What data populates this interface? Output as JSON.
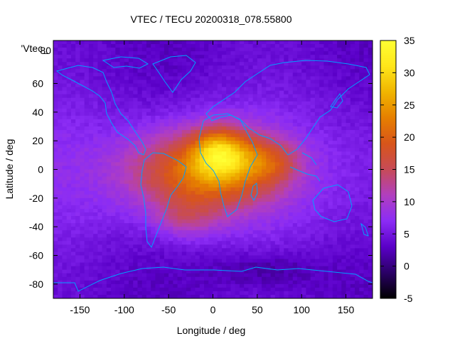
{
  "chart_data": {
    "type": "heatmap",
    "title": "VTEC / TECU 20200318_078.55800",
    "xlabel": "Longitude / deg",
    "ylabel": "Latitude / deg",
    "xlim": [
      -180,
      180
    ],
    "ylim": [
      -90,
      90
    ],
    "x_ticks": [
      "-150",
      "-100",
      "-50",
      "0",
      "50",
      "100",
      "150"
    ],
    "y_ticks": [
      "60",
      "40",
      "20",
      "0",
      "-20",
      "-40",
      "-60",
      "-80"
    ],
    "y_tick_top": "'Vtec_",
    "y_tick_top_hidden": "80",
    "colorbar": {
      "range": [
        -5,
        35
      ],
      "ticks": [
        "35",
        "30",
        "25",
        "20",
        "15",
        "10",
        "5",
        "0",
        "-5"
      ],
      "palette": [
        "#000000",
        "#2a0066",
        "#5a00c8",
        "#8b2cf5",
        "#b13fbf",
        "#c74b57",
        "#d8551a",
        "#e67f00",
        "#f0b500",
        "#ffe61a",
        "#ffff33"
      ]
    },
    "field": {
      "background_tecu": 5,
      "peak": {
        "lon": 5,
        "lat": 12,
        "tecu": 30
      },
      "anomaly_region_lon": [
        -110,
        80
      ],
      "anomaly_region_lat": [
        -50,
        35
      ],
      "coastline_color": "#00a0ff"
    }
  }
}
